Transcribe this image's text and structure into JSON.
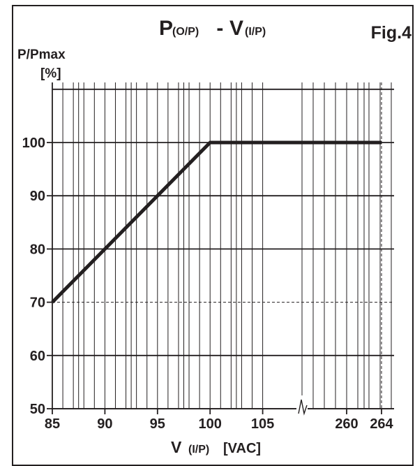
{
  "chart_data": {
    "type": "line",
    "title": {
      "p": "P",
      "p_sub": "(O/P)",
      "dash": " - ",
      "v": "V",
      "v_sub": "(I/P)"
    },
    "figure_label": "Fig.4",
    "ylabel": {
      "line1": "P/Pmax",
      "line2": "[%]"
    },
    "xlabel": {
      "v": "V",
      "v_sub": "(I/P)",
      "unit": "[VAC]"
    },
    "x_ticks": [
      "85",
      "90",
      "95",
      "100",
      "105",
      "260",
      "264"
    ],
    "y_ticks": [
      "50",
      "60",
      "70",
      "80",
      "90",
      "100"
    ],
    "ylim": [
      50,
      110
    ],
    "x_axis_break": "between 105 and 260",
    "series": [
      {
        "x": [
          85,
          100,
          264
        ],
        "y": [
          70,
          100,
          100
        ]
      }
    ],
    "reference_lines": {
      "horizontal_y": 70,
      "vertical_x": 264
    },
    "grid": true,
    "colors": {
      "line": "#231f20",
      "background": "#ffffff"
    }
  }
}
